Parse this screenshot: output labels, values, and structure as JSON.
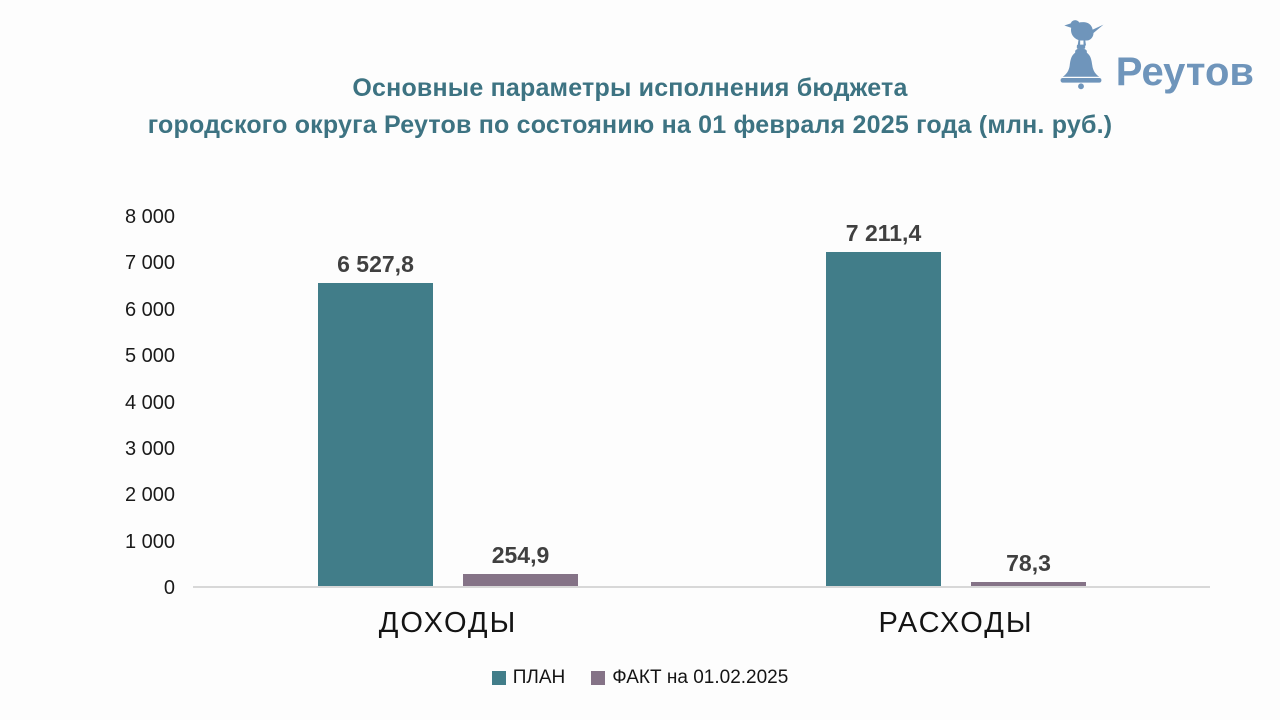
{
  "slide": {
    "title_line1": "Основные параметры исполнения бюджета",
    "title_line2": "городского округа Реутов по состоянию на 01 февраля 2025 года (млн. руб.)",
    "logo_text": "Реутов"
  },
  "chart_data": {
    "type": "bar",
    "title": "Основные параметры исполнения бюджета городского округа Реутов по состоянию на 01 февраля 2025 года (млн. руб.)",
    "categories": [
      "ДОХОДЫ",
      "РАСХОДЫ"
    ],
    "series": [
      {
        "name": "ПЛАН",
        "values": [
          6527.8,
          7211.4
        ],
        "labels": [
          "6 527,8",
          "7 211,4"
        ],
        "color": "#417d89"
      },
      {
        "name": "ФАКТ на 01.02.2025",
        "values": [
          254.9,
          78.3
        ],
        "labels": [
          "254,9",
          "78,3"
        ],
        "color": "#857387"
      }
    ],
    "ylim": [
      0,
      8000
    ],
    "ytick_step": 1000,
    "yticks": [
      "0",
      "1 000",
      "2 000",
      "3 000",
      "4 000",
      "5 000",
      "6 000",
      "7 000",
      "8 000"
    ],
    "grid": false,
    "legend_position": "bottom"
  },
  "colors": {
    "title": "#3d7382",
    "plan_bar": "#417d89",
    "fact_bar": "#857387",
    "logo": "#6f95bb",
    "data_label": "#404040",
    "axis_line": "#d8d8d8"
  }
}
